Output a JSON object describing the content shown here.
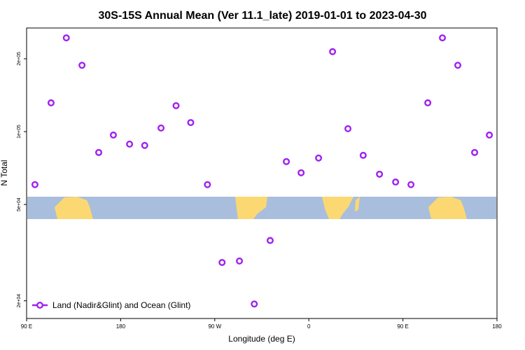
{
  "chart_data": {
    "type": "scatter",
    "title": "30S-15S Annual Mean (Ver 11.1_late)   2019-01-01 to 2023-04-30",
    "x_label": "Longitude (deg E)",
    "y_label": "N Total",
    "x": [
      98,
      113.4,
      128,
      143,
      159,
      173,
      188.5,
      203,
      218.6,
      233,
      247,
      263,
      277,
      293.6,
      307.8,
      323,
      338.5,
      352.6,
      369.3,
      382.7,
      397.4,
      412,
      427.6,
      443,
      457.7,
      473.8,
      487.8,
      502.5,
      518.6,
      532.7
    ],
    "series": [
      {
        "name": "Land (Nadir&Glint) and Ocean (Glint)",
        "color": "#a020f0",
        "values": [
          60400,
          131500,
          244000,
          188000,
          82000,
          96800,
          88800,
          87700,
          103500,
          128000,
          109000,
          60400,
          28800,
          29200,
          19400,
          35500,
          75200,
          67600,
          77800,
          214000,
          102800,
          79800,
          66700,
          61900,
          60400,
          131500,
          244000,
          188000,
          82000,
          96800
        ]
      }
    ],
    "xlim": [
      90,
      540
    ],
    "xticks": [
      {
        "value": 90,
        "label": "90 E"
      },
      180,
      {
        "value": 270,
        "label": "90 W"
      },
      {
        "value": 360,
        "label": "0"
      },
      {
        "value": 450,
        "label": "90 E"
      },
      {
        "value": 540,
        "label": "180"
      }
    ],
    "ylim": [
      16900,
      268000
    ],
    "log_y": true,
    "yticks": [
      {
        "value": 20000,
        "label": "2e+04"
      },
      {
        "value": 50000,
        "label": "5e+04"
      },
      {
        "value": 100000,
        "label": "1e+05"
      },
      {
        "value": 200000,
        "label": "2e+05"
      }
    ],
    "legend": "bottom-left"
  }
}
